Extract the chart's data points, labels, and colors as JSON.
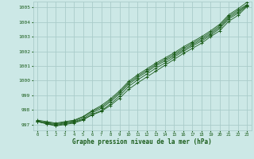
{
  "x": [
    0,
    1,
    2,
    3,
    4,
    5,
    6,
    7,
    8,
    9,
    10,
    11,
    12,
    13,
    14,
    15,
    16,
    17,
    18,
    19,
    20,
    21,
    22,
    23
  ],
  "line1": [
    997.2,
    997.05,
    996.95,
    997.05,
    997.15,
    997.35,
    997.65,
    997.9,
    998.3,
    998.8,
    999.4,
    999.85,
    1000.25,
    1000.65,
    1001.05,
    1001.45,
    1001.85,
    1002.2,
    1002.55,
    1003.0,
    1003.4,
    1004.05,
    1004.45,
    1005.05
  ],
  "line2": [
    997.2,
    997.05,
    996.9,
    997.0,
    997.1,
    997.3,
    997.7,
    997.95,
    998.4,
    998.95,
    999.6,
    1000.05,
    1000.45,
    1000.85,
    1001.2,
    1001.6,
    1002.0,
    1002.35,
    1002.7,
    1003.1,
    1003.55,
    1004.2,
    1004.6,
    1005.1
  ],
  "line3": [
    997.2,
    997.1,
    997.0,
    997.1,
    997.2,
    997.4,
    997.8,
    998.1,
    998.55,
    999.1,
    999.75,
    1000.2,
    1000.6,
    1001.0,
    1001.35,
    1001.7,
    1002.1,
    1002.45,
    1002.8,
    1003.2,
    1003.65,
    1004.3,
    1004.7,
    1005.15
  ],
  "line4": [
    997.25,
    997.15,
    997.05,
    997.15,
    997.25,
    997.5,
    997.9,
    998.2,
    998.65,
    999.2,
    999.85,
    1000.3,
    1000.7,
    1001.1,
    1001.45,
    1001.8,
    1002.2,
    1002.55,
    1002.9,
    1003.3,
    1003.75,
    1004.4,
    1004.8,
    1005.2
  ],
  "line5": [
    997.3,
    997.2,
    997.1,
    997.2,
    997.3,
    997.55,
    997.95,
    998.3,
    998.75,
    999.3,
    999.95,
    1000.4,
    1000.8,
    1001.2,
    1001.55,
    1001.9,
    1002.3,
    1002.65,
    1003.0,
    1003.4,
    1003.85,
    1004.5,
    1004.9,
    1005.35
  ],
  "bg_color": "#cce8e6",
  "grid_color": "#aaccca",
  "line_color": "#1a5c1a",
  "xlabel": "Graphe pression niveau de la mer (hPa)",
  "ylim": [
    996.6,
    1005.4
  ],
  "xlim": [
    -0.5,
    23.5
  ],
  "yticks": [
    997,
    998,
    999,
    1000,
    1001,
    1002,
    1003,
    1004,
    1005
  ],
  "xticks": [
    0,
    1,
    2,
    3,
    4,
    5,
    6,
    7,
    8,
    9,
    10,
    11,
    12,
    13,
    14,
    15,
    16,
    17,
    18,
    19,
    20,
    21,
    22,
    23
  ]
}
